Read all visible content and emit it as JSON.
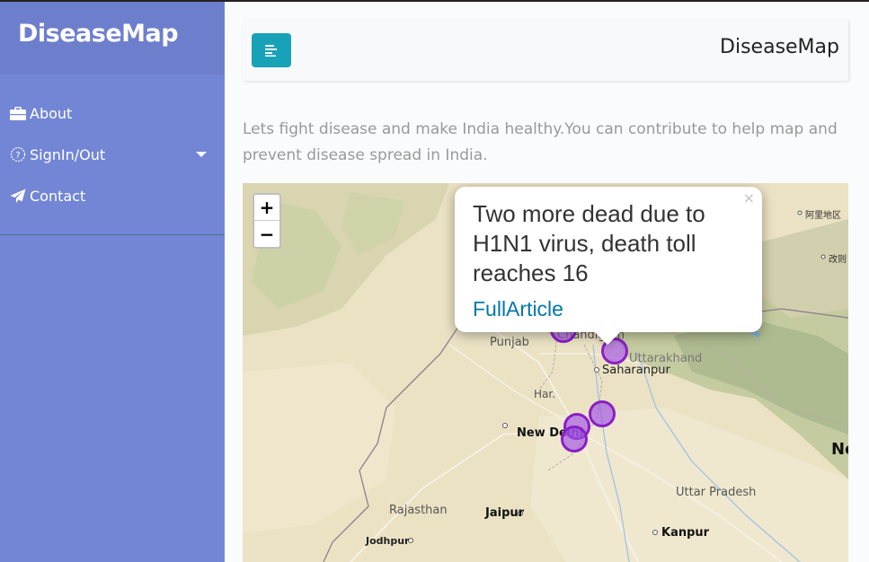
{
  "sidebar": {
    "brand": "DiseaseMap",
    "items": [
      {
        "label": "About",
        "icon": "briefcase-icon"
      },
      {
        "label": "SignIn/Out",
        "icon": "question-circle-icon"
      },
      {
        "label": "Contact",
        "icon": "paper-plane-icon"
      }
    ]
  },
  "topbar": {
    "title": "DiseaseMap",
    "toggle_icon": "align-left-icon",
    "accent": "#17a2b8"
  },
  "intro": "Lets fight disease and make India healthy.You can contribute to help map and prevent disease spread in India.",
  "map": {
    "zoom_in": "+",
    "zoom_out": "−",
    "labels": {
      "punjab": "Punjab",
      "uttarakhand": "Uttarakhand",
      "saharanpur": "Saharanpur",
      "har": "Har.",
      "new_delhi": "New Delhi",
      "uttar_pradesh": "Uttar Pradesh",
      "rajasthan": "Rajasthan",
      "jaipur": "Jaipur",
      "kanpur": "Kanpur",
      "jodhpur": "Jodhpur",
      "ali": "阿里地区",
      "gaize": "改则",
      "ne": "Ne",
      "chandigarh": "Chandigarh"
    },
    "marker_color": "#8b1fc4",
    "popup": {
      "close": "×",
      "text": "Two more dead due to H1N1 virus, death toll reaches 16",
      "link": "FullArticle",
      "link_color": "#0078a8"
    }
  }
}
